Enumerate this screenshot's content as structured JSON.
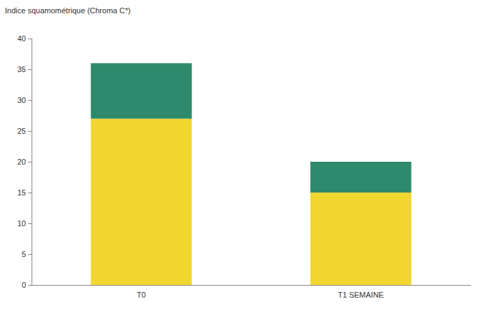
{
  "chart_data": {
    "type": "bar",
    "stacked": true,
    "title": "Indice squamométrique (Chroma C*)",
    "categories": [
      "T0",
      "T1 SEMAINE"
    ],
    "series": [
      {
        "color": "#f2d630",
        "values": [
          27,
          15
        ]
      },
      {
        "color": "#2e8a6c",
        "values": [
          9,
          5
        ]
      }
    ],
    "ylim": [
      0,
      40
    ],
    "yticks": [
      0,
      5,
      10,
      15,
      20,
      25,
      30,
      35,
      40
    ],
    "grid": false
  }
}
